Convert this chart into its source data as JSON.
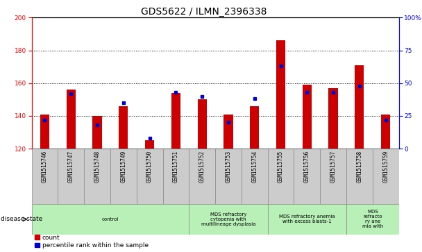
{
  "title": "GDS5622 / ILMN_2396338",
  "samples": [
    "GSM1515746",
    "GSM1515747",
    "GSM1515748",
    "GSM1515749",
    "GSM1515750",
    "GSM1515751",
    "GSM1515752",
    "GSM1515753",
    "GSM1515754",
    "GSM1515755",
    "GSM1515756",
    "GSM1515757",
    "GSM1515758",
    "GSM1515759"
  ],
  "count_values": [
    141,
    156,
    140,
    146,
    125,
    154,
    150,
    141,
    146,
    186,
    159,
    157,
    171,
    141
  ],
  "percentile_values": [
    22,
    42,
    18,
    35,
    8,
    43,
    40,
    20,
    38,
    63,
    43,
    43,
    48,
    22
  ],
  "ylim_left": [
    120,
    200
  ],
  "ylim_right": [
    0,
    100
  ],
  "yticks_left": [
    120,
    140,
    160,
    180,
    200
  ],
  "yticks_right": [
    0,
    25,
    50,
    75,
    100
  ],
  "bar_color": "#cc0000",
  "dot_color": "#0000cc",
  "bg_color": "#ffffff",
  "disease_groups": [
    {
      "label": "control",
      "start": 0,
      "end": 6
    },
    {
      "label": "MDS refractory\ncytopenia with\nmultilineage dysplasia",
      "start": 6,
      "end": 9
    },
    {
      "label": "MDS refractory anemia\nwith excess blasts-1",
      "start": 9,
      "end": 12
    },
    {
      "label": "MDS\nrefracto\nry ane\nmia with",
      "start": 12,
      "end": 14
    }
  ],
  "legend_items": [
    {
      "label": "count",
      "color": "#cc0000"
    },
    {
      "label": "percentile rank within the sample",
      "color": "#0000cc"
    }
  ],
  "title_fontsize": 10,
  "tick_fontsize": 6.5,
  "sample_fontsize": 5.5,
  "disease_fontsize": 5.0,
  "bar_width": 0.35,
  "dot_size": 3.0
}
